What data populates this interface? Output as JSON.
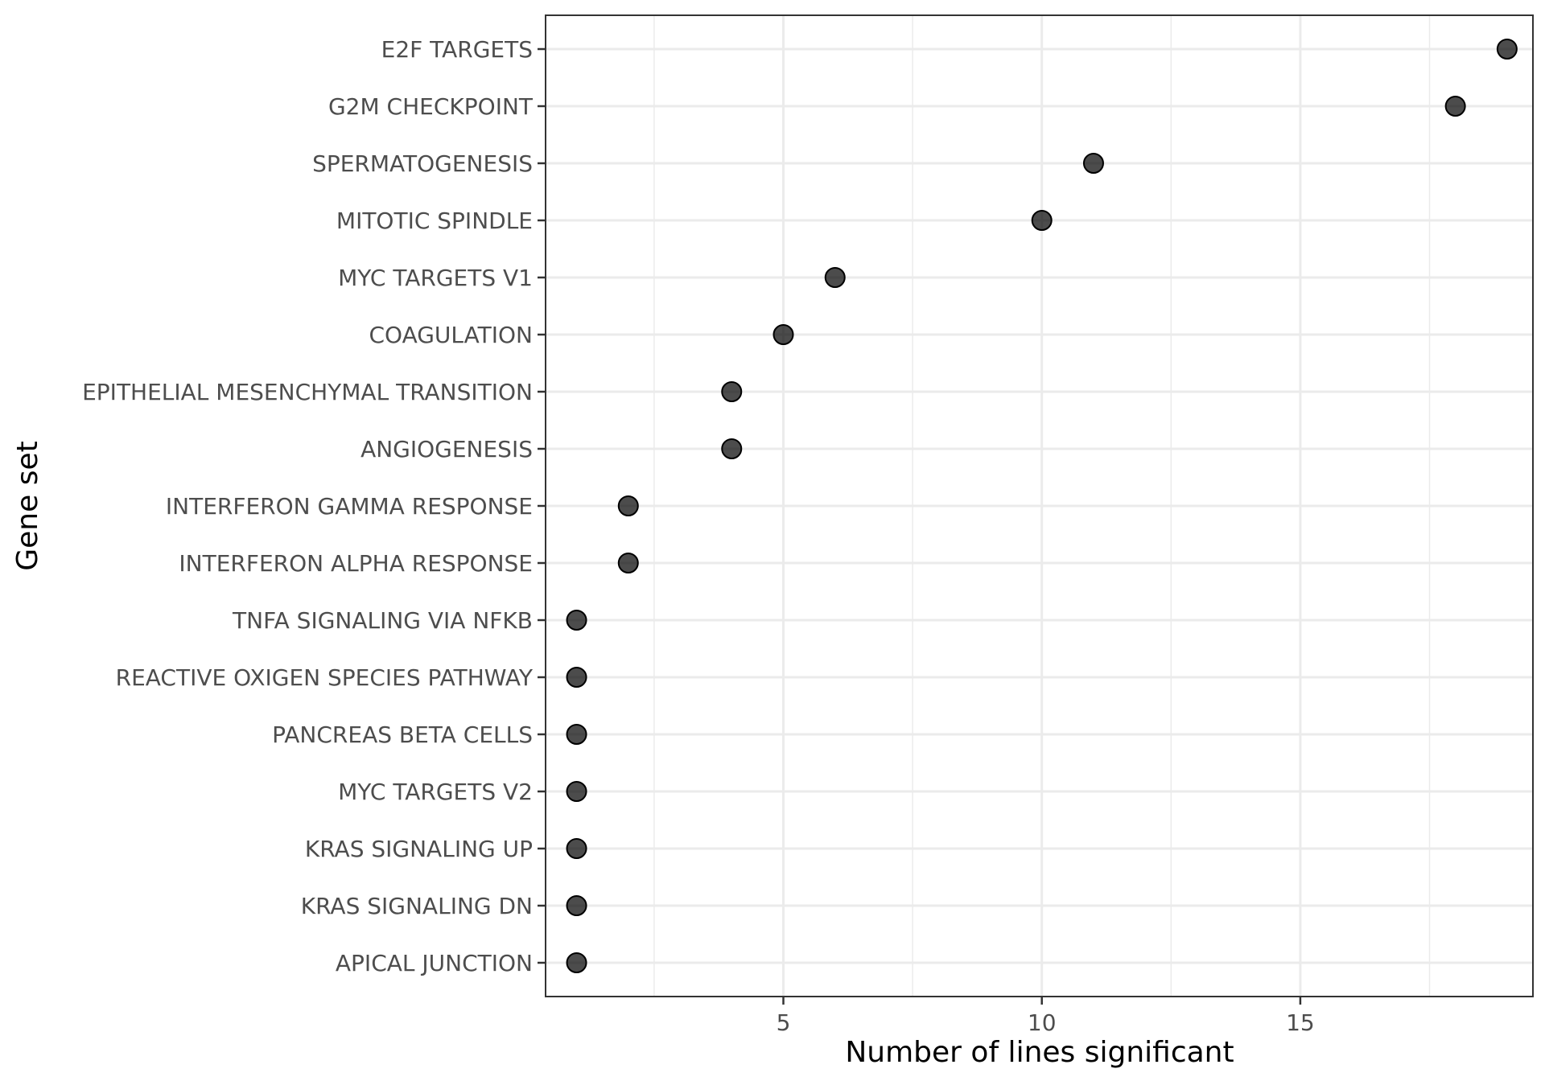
{
  "chart_data": {
    "type": "scatter",
    "title": "",
    "xlabel": "Number of lines significant",
    "ylabel": "Gene set",
    "xlim": [
      0.4,
      19.5
    ],
    "x_ticks": [
      5,
      10,
      15
    ],
    "x_tick_labels": [
      "5",
      "10",
      "15"
    ],
    "grid": true,
    "categories": [
      "E2F TARGETS",
      "G2M CHECKPOINT",
      "SPERMATOGENESIS",
      "MITOTIC SPINDLE",
      "MYC TARGETS V1",
      "COAGULATION",
      "EPITHELIAL MESENCHYMAL TRANSITION",
      "ANGIOGENESIS",
      "INTERFERON GAMMA RESPONSE",
      "INTERFERON ALPHA RESPONSE",
      "TNFA SIGNALING VIA NFKB",
      "REACTIVE OXIGEN SPECIES PATHWAY",
      "PANCREAS BETA CELLS",
      "MYC TARGETS V2",
      "KRAS SIGNALING UP",
      "KRAS SIGNALING DN",
      "APICAL JUNCTION"
    ],
    "values": [
      19,
      18,
      11,
      10,
      6,
      5,
      4,
      4,
      2,
      2,
      1,
      1,
      1,
      1,
      1,
      1,
      1
    ],
    "colors": {
      "point": "#000000",
      "grid": "#ebebeb",
      "border": "#333333",
      "tick_text": "#4d4d4d"
    }
  }
}
